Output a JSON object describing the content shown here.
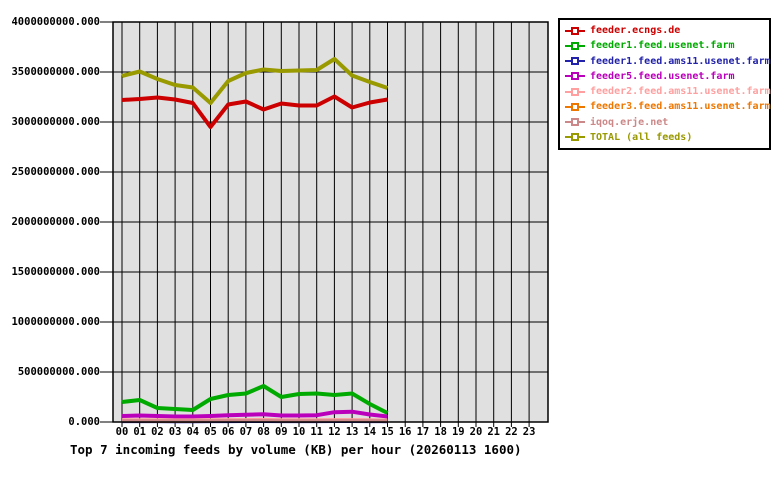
{
  "chart_data": {
    "type": "line",
    "title": "Top 7 incoming feeds by volume (KB) per hour (20260113 1600)",
    "grid": true,
    "plot_bg": "#e0e0e0",
    "legend_position": "outside-top-right",
    "x_axis": {
      "tick_labels": [
        "00",
        "01",
        "02",
        "03",
        "04",
        "05",
        "06",
        "07",
        "08",
        "09",
        "10",
        "11",
        "12",
        "13",
        "14",
        "15",
        "16",
        "17",
        "18",
        "19",
        "20",
        "21",
        "22",
        "23"
      ]
    },
    "y_axis": {
      "min": 0,
      "max": 4000000000,
      "tick_step": 500000000,
      "tick_labels": [
        "4000000000.000",
        "3500000000.000",
        "3000000000.000",
        "2500000000.000",
        "2000000000.000",
        "1500000000.000",
        "1000000000.000",
        "500000000.000",
        "0.000"
      ]
    },
    "series": [
      {
        "name": "feeder.ecngs.de",
        "color": "#cc0000",
        "values": [
          3220000000,
          3230000000,
          3245000000,
          3225000000,
          3190000000,
          2950000000,
          3175000000,
          3205000000,
          3125000000,
          3185000000,
          3165000000,
          3165000000,
          3255000000,
          3145000000,
          3195000000,
          3225000000
        ]
      },
      {
        "name": "feeder1.feed.usenet.farm",
        "color": "#00aa00",
        "values": [
          200000000,
          220000000,
          140000000,
          130000000,
          120000000,
          230000000,
          270000000,
          285000000,
          360000000,
          250000000,
          280000000,
          285000000,
          270000000,
          285000000,
          180000000,
          90000000
        ]
      },
      {
        "name": "feeder1.feed.ams11.usenet.farm",
        "color": "#2222aa",
        "values": [
          4000000,
          4000000,
          4000000,
          3000000,
          3000000,
          4000000,
          4000000,
          5000000,
          5000000,
          4000000,
          4000000,
          4000000,
          5000000,
          5000000,
          4000000,
          3000000
        ]
      },
      {
        "name": "feeder5.feed.usenet.farm",
        "color": "#bb00bb",
        "values": [
          60000000,
          65000000,
          60000000,
          55000000,
          55000000,
          60000000,
          68000000,
          72000000,
          78000000,
          65000000,
          65000000,
          68000000,
          98000000,
          103000000,
          75000000,
          55000000
        ]
      },
      {
        "name": "feeder2.feed.ams11.usenet.farm",
        "color": "#ff9f9f",
        "values": [
          22000000,
          23000000,
          22000000,
          21000000,
          21000000,
          22000000,
          24000000,
          24000000,
          26000000,
          23000000,
          22000000,
          22000000,
          24000000,
          24000000,
          22000000,
          20000000
        ]
      },
      {
        "name": "feeder3.feed.ams11.usenet.farm",
        "color": "#ee7700",
        "values": [
          9000000,
          9000000,
          8000000,
          8000000,
          8000000,
          9000000,
          10000000,
          10000000,
          11000000,
          9000000,
          9000000,
          9000000,
          10000000,
          10000000,
          9000000,
          8000000
        ]
      },
      {
        "name": "iqoq.erje.net",
        "color": "#cc8888",
        "values": [
          13000000,
          13000000,
          12000000,
          12000000,
          12000000,
          13000000,
          14000000,
          14000000,
          15000000,
          13000000,
          13000000,
          13000000,
          14000000,
          14000000,
          13000000,
          12000000
        ]
      },
      {
        "name": "TOTAL (all feeds)",
        "color": "#999900",
        "values": [
          3460000000,
          3505000000,
          3430000000,
          3370000000,
          3345000000,
          3190000000,
          3410000000,
          3490000000,
          3525000000,
          3510000000,
          3515000000,
          3520000000,
          3630000000,
          3465000000,
          3400000000,
          3340000000
        ]
      }
    ]
  }
}
